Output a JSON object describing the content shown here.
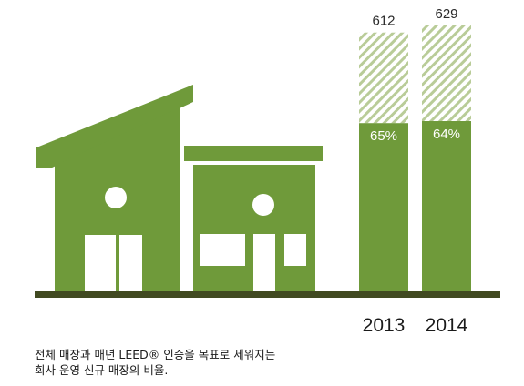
{
  "chart_data": {
    "type": "bar",
    "categories": [
      "2013",
      "2014"
    ],
    "totals": [
      612,
      629
    ],
    "leed_share_labels": [
      "65%",
      "64%"
    ],
    "leed_share": [
      65,
      64
    ],
    "colors": {
      "green": "#6f9a3a",
      "hatch": "#b9cc98",
      "ground": "#414a21"
    }
  },
  "caption_lines": [
    "전체 매장과 매년 LEED® 인증을 목표로 세워지는",
    "회사 운영 신규 매장의 비율."
  ],
  "illustration": {
    "icon": "two-store-buildings-icon"
  }
}
